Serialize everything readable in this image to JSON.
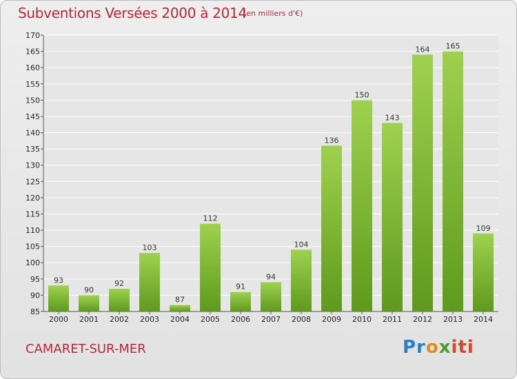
{
  "header": {
    "title": "Subventions Versées 2000 à 2014",
    "unit_note": "(en milliers d'€)"
  },
  "footer": {
    "commune": "CAMARET-SUR-MER",
    "logo": [
      "Pr",
      "o",
      "x",
      "iti"
    ]
  },
  "colors": {
    "bar_top": "#9fd14f",
    "bar_bottom": "#5e9a1c",
    "title": "#b12a36",
    "grid": "#ffffff"
  },
  "chart_data": {
    "type": "bar",
    "title": "Subventions Versées 2000 à 2014",
    "subtitle": "(en milliers d'€)",
    "categories": [
      "2000",
      "2001",
      "2002",
      "2003",
      "2004",
      "2005",
      "2006",
      "2007",
      "2008",
      "2009",
      "2010",
      "2011",
      "2012",
      "2013",
      "2014"
    ],
    "values": [
      93,
      90,
      92,
      103,
      87,
      112,
      91,
      94,
      104,
      136,
      150,
      143,
      164,
      165,
      109
    ],
    "ylim": [
      85,
      170
    ],
    "yticks": [
      85,
      90,
      95,
      100,
      105,
      110,
      115,
      120,
      125,
      130,
      135,
      140,
      145,
      150,
      155,
      160,
      165,
      170
    ],
    "grid": true,
    "xlabel": "",
    "ylabel": ""
  }
}
